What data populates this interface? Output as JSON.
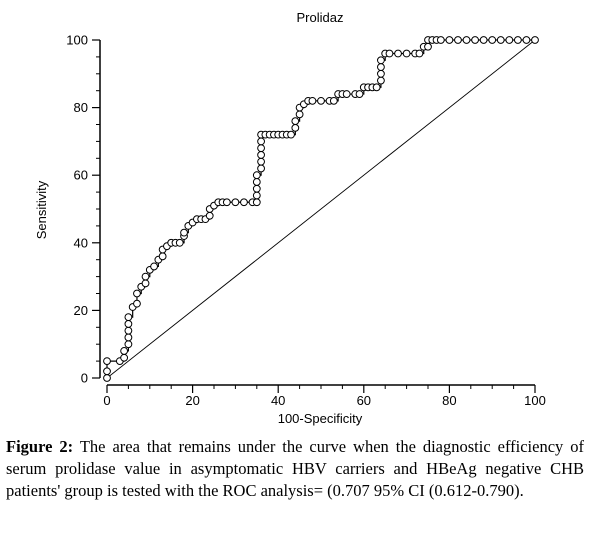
{
  "chart_data": {
    "type": "line",
    "title": "Prolidaz",
    "xlabel": "100-Specificity",
    "ylabel": "Sensitivity",
    "xlim": [
      0,
      100
    ],
    "ylim": [
      0,
      100
    ],
    "xticks": [
      "0",
      "20",
      "40",
      "60",
      "80",
      "100"
    ],
    "yticks": [
      "0",
      "20",
      "40",
      "60",
      "80",
      "100"
    ],
    "grid": false,
    "series": [
      {
        "marker": "circle",
        "x": [
          0,
          0,
          0,
          3,
          4,
          4,
          5,
          5,
          5,
          5,
          5,
          6,
          7,
          7,
          8,
          9,
          9,
          10,
          11,
          12,
          13,
          13,
          14,
          15,
          16,
          17,
          18,
          18,
          19,
          20,
          21,
          22,
          23,
          24,
          24,
          25,
          26,
          27,
          28,
          30,
          32,
          34,
          35,
          35,
          35,
          35,
          35,
          36,
          36,
          36,
          36,
          36,
          36,
          37,
          38,
          39,
          40,
          41,
          42,
          43,
          44,
          44,
          45,
          45,
          46,
          47,
          48,
          50,
          52,
          53,
          54,
          55,
          56,
          58,
          59,
          60,
          61,
          62,
          63,
          64,
          64,
          64,
          64,
          65,
          66,
          68,
          70,
          72,
          73,
          74,
          75,
          75,
          76,
          77,
          78,
          80,
          82,
          84,
          86,
          88,
          90,
          92,
          94,
          96,
          98,
          100
        ],
        "y": [
          0,
          2,
          5,
          5,
          6,
          8,
          10,
          12,
          14,
          16,
          18,
          21,
          22,
          25,
          27,
          28,
          30,
          32,
          33,
          35,
          36,
          38,
          39,
          40,
          40,
          40,
          42,
          43,
          45,
          46,
          47,
          47,
          47,
          48,
          50,
          51,
          52,
          52,
          52,
          52,
          52,
          52,
          52,
          54,
          56,
          58,
          60,
          62,
          64,
          66,
          68,
          70,
          72,
          72,
          72,
          72,
          72,
          72,
          72,
          72,
          74,
          76,
          78,
          80,
          81,
          82,
          82,
          82,
          82,
          82,
          84,
          84,
          84,
          84,
          84,
          86,
          86,
          86,
          86,
          88,
          90,
          92,
          94,
          96,
          96,
          96,
          96,
          96,
          96,
          98,
          98,
          100,
          100,
          100,
          100,
          100,
          100,
          100,
          100,
          100,
          100,
          100,
          100,
          100,
          100,
          100
        ]
      },
      {
        "style": "reference-line",
        "x": [
          0,
          100
        ],
        "y": [
          0,
          100
        ]
      }
    ]
  },
  "caption": {
    "label": "Figure 2:",
    "text": " The area that remains under the curve when the diagnostic efficiency of serum prolidase value in asymptomatic HBV carriers and HBeAg negative CHB patients' group is tested with the ROC analysis= (0.707 95% CI (0.612-0.790)."
  }
}
